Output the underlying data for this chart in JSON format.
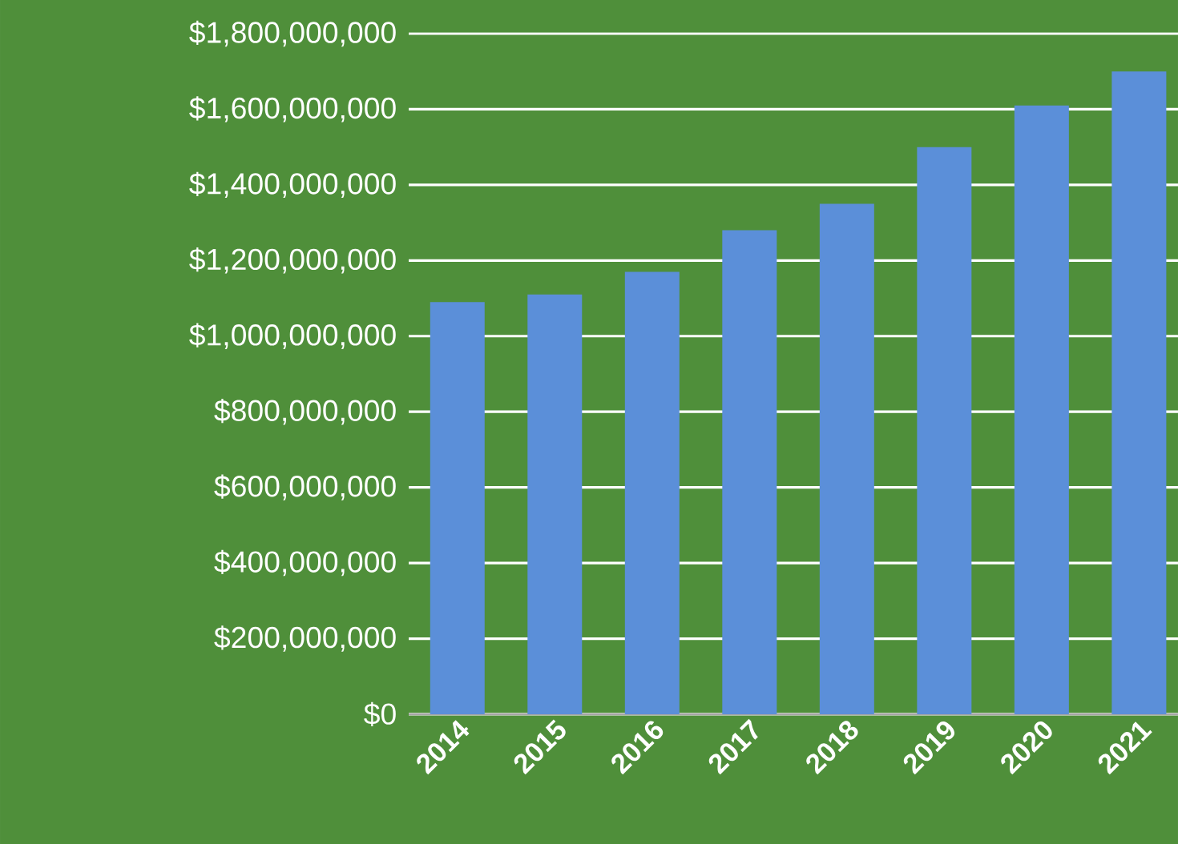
{
  "chart_data": {
    "type": "bar",
    "categories": [
      "2014",
      "2015",
      "2016",
      "2017",
      "2018",
      "2019",
      "2020",
      "2021"
    ],
    "values": [
      1090000000,
      1110000000,
      1170000000,
      1280000000,
      1350000000,
      1500000000,
      1610000000,
      1700000000
    ],
    "color": "#5b8fd9",
    "ylim": [
      0,
      1800000000
    ],
    "yticks": [
      {
        "value": 0,
        "label": "$0"
      },
      {
        "value": 200000000,
        "label": "$200,000,000"
      },
      {
        "value": 400000000,
        "label": "$400,000,000"
      },
      {
        "value": 600000000,
        "label": "$600,000,000"
      },
      {
        "value": 800000000,
        "label": "$800,000,000"
      },
      {
        "value": 1000000000,
        "label": "$1,000,000,000"
      },
      {
        "value": 1200000000,
        "label": "$1,200,000,000"
      },
      {
        "value": 1400000000,
        "label": "$1,400,000,000"
      },
      {
        "value": 1600000000,
        "label": "$1,600,000,000"
      },
      {
        "value": 1800000000,
        "label": "$1,800,000,000"
      }
    ],
    "grid": "y"
  }
}
